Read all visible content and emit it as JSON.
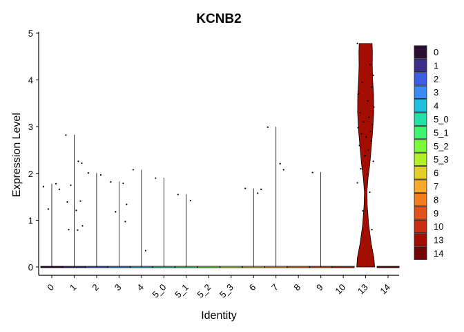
{
  "chart_data": {
    "type": "violin",
    "title": "KCNB2",
    "xlabel": "Identity",
    "ylabel": "Expression Level",
    "ylim": [
      0,
      5
    ],
    "yticks": [
      0,
      1,
      2,
      3,
      4,
      5
    ],
    "categories": [
      "0",
      "1",
      "2",
      "3",
      "4",
      "5_0",
      "5_1",
      "5_2",
      "5_3",
      "6",
      "7",
      "8",
      "9",
      "10",
      "13",
      "14"
    ],
    "colors": [
      "#2b0f33",
      "#3a2f8a",
      "#3f5ee6",
      "#3a8bf5",
      "#1fc0df",
      "#25e0a6",
      "#3ff472",
      "#7afa3b",
      "#b0f02a",
      "#e2cf2b",
      "#f9a92b",
      "#f57b1f",
      "#e2531a",
      "#c92e10",
      "#a40e02",
      "#730604"
    ],
    "max_values": [
      1.78,
      2.83,
      2.01,
      1.83,
      2.08,
      1.91,
      1.56,
      0.0,
      0.0,
      1.68,
      3.0,
      0.0,
      2.03,
      0.0,
      4.78,
      0.0
    ],
    "outlier_points": [
      {
        "category": "0",
        "values": [
          1.72,
          1.78,
          1.66,
          1.24
        ]
      },
      {
        "category": "1",
        "values": [
          2.82,
          2.26,
          2.22,
          1.75,
          1.41,
          1.39,
          1.21,
          0.88,
          0.8,
          0.79
        ]
      },
      {
        "category": "2",
        "values": [
          2.01,
          1.97
        ]
      },
      {
        "category": "3",
        "values": [
          1.82,
          1.79,
          1.34,
          1.18,
          0.97
        ]
      },
      {
        "category": "4",
        "values": [
          2.08,
          0.35
        ]
      },
      {
        "category": "5_0",
        "values": [
          1.9
        ]
      },
      {
        "category": "5_1",
        "values": [
          1.55,
          1.42
        ]
      },
      {
        "category": "6",
        "values": [
          1.68,
          1.58,
          1.66
        ]
      },
      {
        "category": "7",
        "values": [
          2.99,
          2.21,
          2.08
        ]
      },
      {
        "category": "9",
        "values": [
          2.02
        ]
      },
      {
        "category": "13",
        "values": [
          4.78,
          4.33,
          4.1,
          3.95,
          3.85,
          3.7,
          3.55,
          3.42,
          3.3,
          3.2,
          3.1,
          3.05,
          2.98,
          2.9,
          2.85,
          2.78,
          2.7,
          2.6,
          2.5,
          2.38,
          2.26,
          2.1,
          1.98,
          1.8,
          1.6,
          1.2,
          0.8
        ]
      }
    ],
    "violin_13_profile": {
      "y": [
        0,
        0.2,
        0.5,
        0.9,
        1.3,
        1.6,
        1.9,
        2.2,
        2.5,
        2.9,
        3.3,
        3.7,
        4.0,
        4.3,
        4.6,
        4.78
      ],
      "half_width_fraction": [
        1.0,
        0.92,
        0.62,
        0.34,
        0.18,
        0.14,
        0.26,
        0.46,
        0.6,
        0.78,
        0.9,
        0.88,
        0.78,
        0.74,
        0.75,
        0.72
      ]
    },
    "legend": {
      "position": "right",
      "labels": [
        "0",
        "1",
        "2",
        "3",
        "4",
        "5_0",
        "5_1",
        "5_2",
        "5_3",
        "6",
        "7",
        "8",
        "9",
        "10",
        "13",
        "14"
      ]
    },
    "grid": false
  }
}
